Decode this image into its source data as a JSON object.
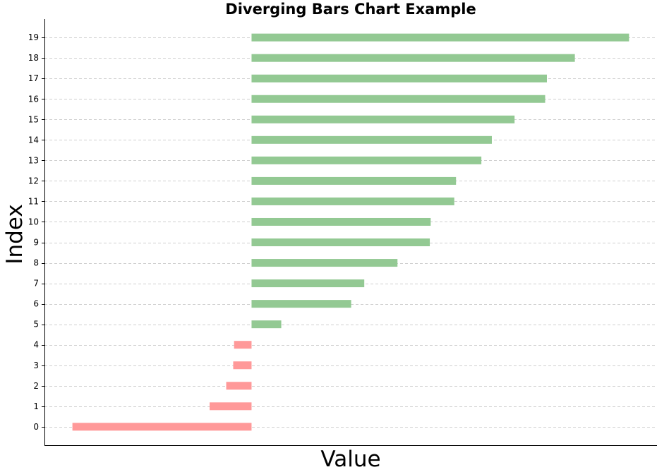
{
  "chart_data": {
    "type": "bar",
    "orientation": "horizontal",
    "title": "Diverging Bars Chart Example",
    "xlabel": "Value",
    "ylabel": "Index",
    "categories": [
      "0",
      "1",
      "2",
      "3",
      "4",
      "5",
      "6",
      "7",
      "8",
      "9",
      "10",
      "11",
      "12",
      "13",
      "14",
      "15",
      "16",
      "17",
      "18",
      "19"
    ],
    "values": [
      -2.05,
      -0.48,
      -0.29,
      -0.21,
      -0.2,
      0.34,
      1.14,
      1.29,
      1.67,
      2.04,
      2.05,
      2.32,
      2.34,
      2.63,
      2.75,
      3.01,
      3.36,
      3.38,
      3.7,
      4.32
    ],
    "xlim": [
      -2.37,
      4.64
    ],
    "ylim": [
      -0.9,
      19.9
    ],
    "x_tick_labels_shown": false,
    "grid": "horizontal dashed",
    "colors": {
      "positive": "#93c993",
      "negative": "#ff9999",
      "grid": "#cfcfcf"
    }
  }
}
